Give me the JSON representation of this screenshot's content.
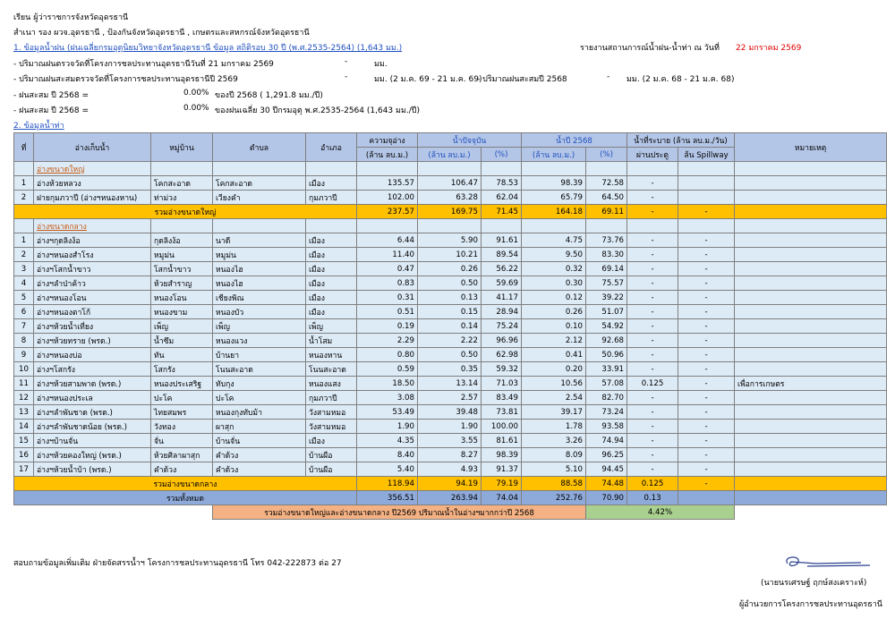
{
  "header": {
    "to": "เรียน  ผู้ว่าราชการจังหวัดอุดรธานี",
    "copy": "สำเนา  รอง ผวจ.อุดรธานี , ป้องกันจังหวัดอุดรธานี , เกษตรและสหกรณ์จังหวัดอุดรธานี",
    "rain_title": "1. ข้อมูลน้ำฝน (ฝนเฉลี่ยกรมอุตุนิยมวิทยาจังหวัดอุดรธานี ข้อมูล สถิติรอบ 30 ปี (พ.ศ.2535-2564)  (1,643 มม.)",
    "report_label": "รายงานสถานการณ์น้ำฝน-น้ำท่า  ณ  วันที่",
    "report_date": "22  มกราคม  2569"
  },
  "rain_lines": [
    [
      "- ปริมาณฝนตรวจวัดที่โครงการชลประทานอุดรธานีวันที่  21  มกราคม  2569",
      "-",
      "มม."
    ],
    [
      "- ปริมาณฝนสะสมตรวจวัดที่โครงการชลประทานอุดรธานีปี 2569",
      "-",
      "มม. (2 ม.ค. 69 - 21 ม.ค. 69)",
      "- ปริมาณฝนสะสมปี 2568",
      "-",
      "มม. (2 ม.ค. 68 - 21 ม.ค. 68)"
    ],
    [
      "- ฝนสะสม ปี 2568 =",
      "0.00%",
      "ของปี 2568 ( 1,291.8 มม./ปี)"
    ],
    [
      "- ฝนสะสม ปี 2568 =",
      "0.00%",
      "ของฝนเฉลี่ย 30 ปีกรมอุตุ พ.ศ.2535-2564 (1,643 มม./ปี)"
    ]
  ],
  "water_title": "2. ข้อมูลน้ำท่า",
  "table": {
    "columns": [
      "ที่",
      "อ่างเก็บน้ำ",
      "หมู่บ้าน",
      "ตำบล",
      "อำเภอ",
      "ความจุอ่าง",
      "น้ำปัจจุบัน",
      "น้ำปี 2568",
      "น้ำที่ระบาย (ล้าน ลบ.ม./วัน)",
      "หมายเหตุ"
    ],
    "subcolumns": [
      "(ล้าน ลบ.ม.)",
      "(ล้าน ลบ.ม.)",
      "(%)",
      "(ล้าน ลบ.ม.)",
      "(%)",
      "ผ่านประตู",
      "ล้น Spillway"
    ],
    "groups": [
      {
        "label": "อ่างขนาดใหญ่",
        "rows": [
          [
            "1",
            "อ่างห้วยหลวง",
            "โคกสะอาด",
            "โคกสะอาด",
            "เมือง",
            "135.57",
            "106.47",
            "78.53",
            "98.39",
            "72.58",
            "-"
          ],
          [
            "2",
            "ฝายกุมภวาปี (อ่างฯหนองหาน)",
            "ท่าม่วง",
            "เวียงคำ",
            "กุมภวาปี",
            "102.00",
            "63.28",
            "62.04",
            "65.79",
            "64.50",
            "-"
          ]
        ],
        "total": [
          "รวมอ่างขนาดใหญ่",
          "237.57",
          "169.75",
          "71.45",
          "164.18",
          "69.11",
          "-",
          "-"
        ]
      },
      {
        "label": "อ่างขนาดกลาง",
        "rows": [
          [
            "1",
            "อ่างฯกุดลิงง้อ",
            "กุดลิงง้อ",
            "นาดี",
            "เมือง",
            "6.44",
            "5.90",
            "91.61",
            "4.75",
            "73.76",
            "-",
            "-"
          ],
          [
            "2",
            "อ่างฯหนองสำโรง",
            "หมูม่น",
            "หมูม่น",
            "เมือง",
            "11.40",
            "10.21",
            "89.54",
            "9.50",
            "83.30",
            "-",
            "-"
          ],
          [
            "3",
            "อ่างฯโสกน้ำขาว",
            "โสกน้ำขาว",
            "หนองไฮ",
            "เมือง",
            "0.47",
            "0.26",
            "56.22",
            "0.32",
            "69.14",
            "-",
            "-"
          ],
          [
            "4",
            "อ่างฯลำป่าค้าว",
            "ห้วยสำราญ",
            "หนองไฮ",
            "เมือง",
            "0.83",
            "0.50",
            "59.69",
            "0.30",
            "75.57",
            "-",
            "-"
          ],
          [
            "5",
            "อ่างฯหนองโอน",
            "หนองโอน",
            "เชียงพิณ",
            "เมือง",
            "0.31",
            "0.13",
            "41.17",
            "0.12",
            "39.22",
            "-",
            "-"
          ],
          [
            "6",
            "อ่างฯหนองตาโก้",
            "หนองขาม",
            "หนองบัว",
            "เมือง",
            "0.51",
            "0.15",
            "28.94",
            "0.26",
            "51.07",
            "-",
            "-"
          ],
          [
            "7",
            "อ่างฯห้วยน้ำเที่ยง",
            "เพ็ญ",
            "เพ็ญ",
            "เพ็ญ",
            "0.19",
            "0.14",
            "75.24",
            "0.10",
            "54.92",
            "-",
            "-"
          ],
          [
            "8",
            "อ่างฯห้วยทราย (พรด.)",
            "น้ำซึม",
            "หนองแวง",
            "น้ำโสม",
            "2.29",
            "2.22",
            "96.96",
            "2.12",
            "92.68",
            "-",
            "-"
          ],
          [
            "9",
            "อ่างฯหนองบ่อ",
            "ทัน",
            "บ้านยา",
            "หนองหาน",
            "0.80",
            "0.50",
            "62.98",
            "0.41",
            "50.96",
            "-",
            "-"
          ],
          [
            "10",
            "อ่างฯโสกรัง",
            "โสกรัง",
            "โนนสะอาด",
            "โนนสะอาด",
            "0.59",
            "0.35",
            "59.32",
            "0.20",
            "33.91",
            "-",
            "-"
          ],
          [
            "11",
            "อ่างฯห้วยสามพาด (พรด.)",
            "หนองประเสริฐ",
            "ทับกุง",
            "หนองแสง",
            "18.50",
            "13.14",
            "71.03",
            "10.56",
            "57.08",
            "0.125",
            "-",
            "เพื่อการเกษตร"
          ],
          [
            "12",
            "อ่างฯหนองประเล",
            "ปะโค",
            "ปะโค",
            "กุมภวาปี",
            "3.08",
            "2.57",
            "83.49",
            "2.54",
            "82.70",
            "-",
            "-"
          ],
          [
            "13",
            "อ่างฯลำพันชาด (พรด.)",
            "ไทยสมพร",
            "หนองกุงทับม้า",
            "วังสามหมอ",
            "53.49",
            "39.48",
            "73.81",
            "39.17",
            "73.24",
            "-",
            "-"
          ],
          [
            "14",
            "อ่างฯลำพันชาดน้อย (พรด.)",
            "วังทอง",
            "ผาสุก",
            "วังสามหมอ",
            "1.90",
            "1.90",
            "100.00",
            "1.78",
            "93.58",
            "-",
            "-"
          ],
          [
            "15",
            "อ่างฯบ้านจั่น",
            "จั่น",
            "บ้านจั่น",
            "เมือง",
            "4.35",
            "3.55",
            "81.61",
            "3.26",
            "74.94",
            "-",
            "-"
          ],
          [
            "16",
            "อ่างฯห้วยคองใหญ่ (พรด.)",
            "ห้วยศิลาผาสุก",
            "คำด้วง",
            "บ้านผือ",
            "8.40",
            "8.27",
            "98.39",
            "8.09",
            "96.25",
            "-",
            "-"
          ],
          [
            "17",
            "อ่างฯห้วยน้ำบ้า (พรด.)",
            "คำด้วง",
            "คำด้วง",
            "บ้านผือ",
            "5.40",
            "4.93",
            "91.37",
            "5.10",
            "94.45",
            "-",
            "-"
          ]
        ],
        "total": [
          "รวมอ่างขนาดกลาง",
          "118.94",
          "94.19",
          "79.19",
          "88.58",
          "74.48",
          "0.125",
          "-"
        ]
      }
    ],
    "grand_total": [
      "รวมทั้งหมด",
      "356.51",
      "263.94",
      "74.04",
      "252.76",
      "70.90",
      "0.13"
    ],
    "comparison": [
      "รวมอ่างขนาดใหญ่และอ่างขนาดกลาง ปี2569 ปริมาณน้ำในอ่างฯมากกว่าปี 2568",
      "4.42%"
    ]
  },
  "footer": {
    "contact": "สอบถามข้อมูลเพิ่มเติม  ฝ่ายจัดสรรน้ำฯ โครงการชลประทานอุดรธานี โทร 042-222873 ต่อ 27",
    "signer": "(นายนรเศรษฐ์ ฤกษ์สงเคราะห์)",
    "position": "ผู้อำนวยการโครงการชลประทานอุดรธานี"
  }
}
